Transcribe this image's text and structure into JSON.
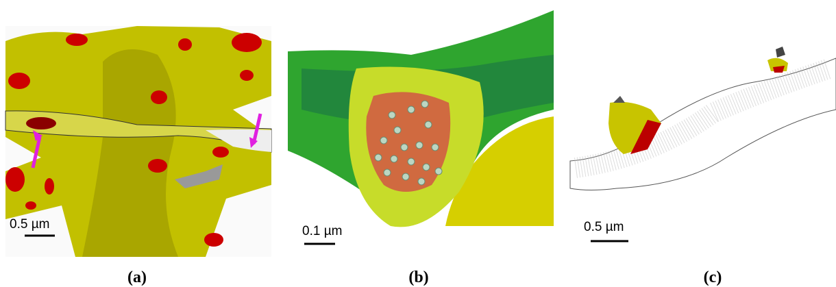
{
  "panels": [
    {
      "label": "(a)",
      "scale_bar": "0.5 µm"
    },
    {
      "label": "(b)",
      "scale_bar": "0.1 µm"
    },
    {
      "label": "(c)",
      "scale_bar": "0.5 µm"
    }
  ]
}
